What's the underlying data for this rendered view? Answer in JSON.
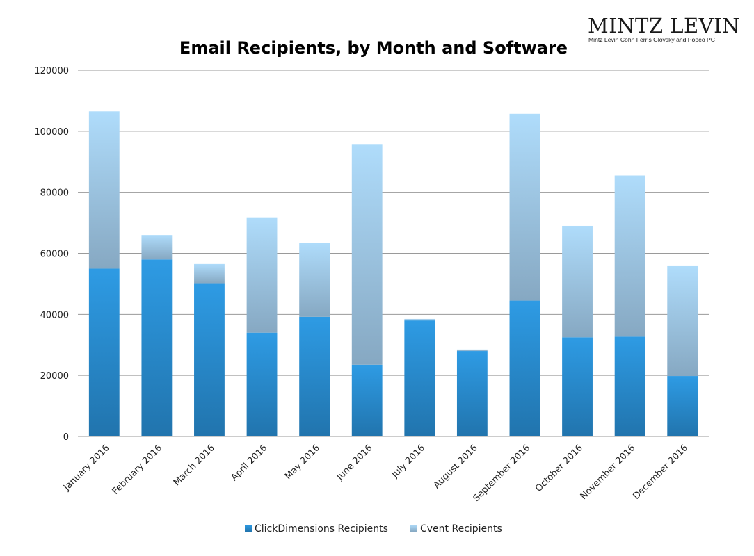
{
  "logo": {
    "name": "MINTZ LEVIN",
    "subtitle": "Mintz Levin Cohn Ferris Glovsky and Popeo PC"
  },
  "colors": {
    "series1_top": "#2e9be4",
    "series1_bottom": "#2174ad",
    "series2_top": "#afdcfb",
    "series2_bottom": "#86a8c2",
    "grid": "#9a9a9a"
  },
  "chart_data": {
    "type": "bar",
    "stacked": true,
    "title": "Email Recipients, by Month and Software",
    "xlabel": "",
    "ylabel": "",
    "categories": [
      "January 2016",
      "February 2016",
      "March 2016",
      "April 2016",
      "May 2016",
      "June 2016",
      "July 2016",
      "August 2016",
      "September 2016",
      "October 2016",
      "November 2016",
      "December 2016"
    ],
    "series": [
      {
        "name": "ClickDimensions Recipients",
        "values": [
          55000,
          58000,
          50200,
          34000,
          39200,
          23500,
          38000,
          28000,
          44500,
          32500,
          32700,
          19800
        ]
      },
      {
        "name": "Cvent Recipients",
        "values": [
          51500,
          8000,
          6300,
          37800,
          24300,
          72300,
          500,
          500,
          61200,
          36500,
          52800,
          36000
        ]
      }
    ],
    "ylim": [
      0,
      120000
    ],
    "yticks": [
      "0",
      "20000",
      "40000",
      "60000",
      "80000",
      "100000",
      "120000"
    ],
    "ytick_values": [
      0,
      20000,
      40000,
      60000,
      80000,
      100000,
      120000
    ],
    "grid": true,
    "legend_position": "bottom"
  }
}
